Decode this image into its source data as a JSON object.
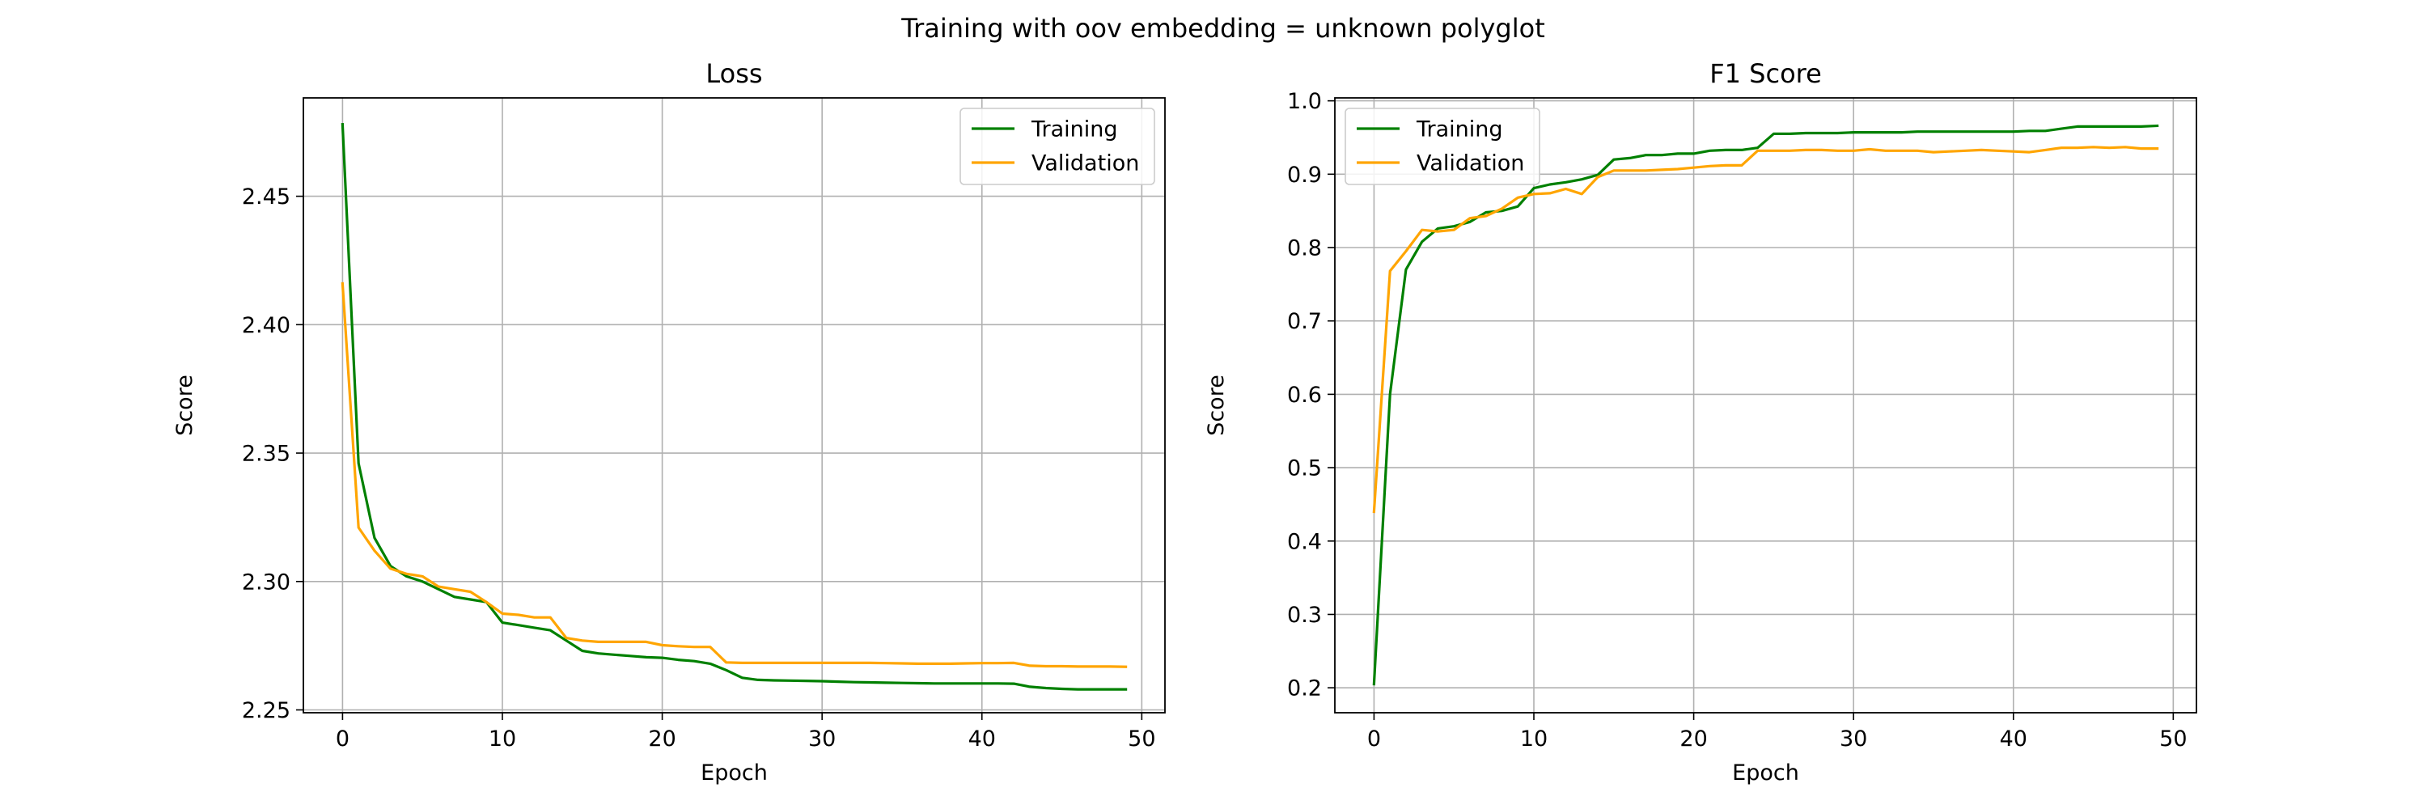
{
  "figure": {
    "suptitle": "Training with oov embedding = unknown polyglot"
  },
  "colors": {
    "training": "#008000",
    "validation": "#ffa500",
    "grid": "#b0b0b0",
    "axes": "#000000"
  },
  "chart_data": [
    {
      "type": "line",
      "title": "Loss",
      "xlabel": "Epoch",
      "ylabel": "Score",
      "xlim": [
        -2.45,
        51.45
      ],
      "ylim": [
        2.2489,
        2.4883
      ],
      "xticks": [
        0,
        10,
        20,
        30,
        40,
        50
      ],
      "yticks": [
        2.25,
        2.3,
        2.35,
        2.4,
        2.45
      ],
      "ytick_labels": [
        "2.25",
        "2.30",
        "2.35",
        "2.40",
        "2.45"
      ],
      "grid": true,
      "legend": "upper right",
      "x": [
        0,
        1,
        2,
        3,
        4,
        5,
        6,
        7,
        8,
        9,
        10,
        11,
        12,
        13,
        14,
        15,
        16,
        17,
        18,
        19,
        20,
        21,
        22,
        23,
        24,
        25,
        26,
        27,
        28,
        29,
        30,
        31,
        32,
        33,
        34,
        35,
        36,
        37,
        38,
        39,
        40,
        41,
        42,
        43,
        44,
        45,
        46,
        47,
        48,
        49
      ],
      "series": [
        {
          "name": "Training",
          "color": "#008000",
          "values": [
            2.478,
            2.346,
            2.317,
            2.306,
            2.302,
            2.3,
            2.297,
            2.294,
            2.293,
            2.292,
            2.284,
            2.283,
            2.282,
            2.281,
            2.277,
            2.273,
            2.272,
            2.2715,
            2.271,
            2.2705,
            2.2703,
            2.2695,
            2.269,
            2.268,
            2.2655,
            2.2625,
            2.2617,
            2.2615,
            2.2614,
            2.2613,
            2.2612,
            2.261,
            2.2608,
            2.2607,
            2.2606,
            2.2605,
            2.2604,
            2.2603,
            2.2603,
            2.2603,
            2.2603,
            2.2603,
            2.2602,
            2.259,
            2.2585,
            2.2582,
            2.258,
            2.258,
            2.258,
            2.258
          ]
        },
        {
          "name": "Validation",
          "color": "#ffa500",
          "values": [
            2.416,
            2.321,
            2.312,
            2.305,
            2.303,
            2.302,
            2.298,
            2.297,
            2.296,
            2.292,
            2.2875,
            2.287,
            2.286,
            2.286,
            2.278,
            2.277,
            2.2765,
            2.2765,
            2.2765,
            2.2765,
            2.2752,
            2.2748,
            2.2745,
            2.2745,
            2.2685,
            2.2683,
            2.2683,
            2.2683,
            2.2683,
            2.2683,
            2.2683,
            2.2683,
            2.2683,
            2.2683,
            2.2682,
            2.2681,
            2.268,
            2.268,
            2.268,
            2.2681,
            2.2682,
            2.2682,
            2.2683,
            2.2672,
            2.267,
            2.267,
            2.2669,
            2.2669,
            2.2669,
            2.2668
          ]
        }
      ]
    },
    {
      "type": "line",
      "title": "F1 Score",
      "xlabel": "Epoch",
      "ylabel": "Score",
      "xlim": [
        -2.45,
        51.45
      ],
      "ylim": [
        0.166,
        1.004
      ],
      "xticks": [
        0,
        10,
        20,
        30,
        40,
        50
      ],
      "yticks": [
        0.2,
        0.3,
        0.4,
        0.5,
        0.6,
        0.7,
        0.8,
        0.9,
        1.0
      ],
      "ytick_labels": [
        "0.2",
        "0.3",
        "0.4",
        "0.5",
        "0.6",
        "0.7",
        "0.8",
        "0.9",
        "1.0"
      ],
      "grid": true,
      "legend": "upper left",
      "x": [
        0,
        1,
        2,
        3,
        4,
        5,
        6,
        7,
        8,
        9,
        10,
        11,
        12,
        13,
        14,
        15,
        16,
        17,
        18,
        19,
        20,
        21,
        22,
        23,
        24,
        25,
        26,
        27,
        28,
        29,
        30,
        31,
        32,
        33,
        34,
        35,
        36,
        37,
        38,
        39,
        40,
        41,
        42,
        43,
        44,
        45,
        46,
        47,
        48,
        49
      ],
      "series": [
        {
          "name": "Training",
          "color": "#008000",
          "values": [
            0.205,
            0.6,
            0.77,
            0.808,
            0.826,
            0.829,
            0.835,
            0.848,
            0.85,
            0.856,
            0.881,
            0.886,
            0.889,
            0.893,
            0.899,
            0.92,
            0.922,
            0.926,
            0.926,
            0.928,
            0.928,
            0.932,
            0.933,
            0.933,
            0.936,
            0.955,
            0.955,
            0.956,
            0.956,
            0.956,
            0.957,
            0.957,
            0.957,
            0.957,
            0.958,
            0.958,
            0.958,
            0.958,
            0.958,
            0.958,
            0.958,
            0.959,
            0.959,
            0.962,
            0.965,
            0.965,
            0.965,
            0.965,
            0.965,
            0.966
          ]
        },
        {
          "name": "Validation",
          "color": "#ffa500",
          "values": [
            0.44,
            0.768,
            0.795,
            0.824,
            0.822,
            0.824,
            0.84,
            0.843,
            0.853,
            0.868,
            0.873,
            0.874,
            0.88,
            0.873,
            0.896,
            0.905,
            0.905,
            0.905,
            0.906,
            0.907,
            0.909,
            0.911,
            0.912,
            0.912,
            0.932,
            0.932,
            0.932,
            0.933,
            0.933,
            0.932,
            0.932,
            0.934,
            0.932,
            0.932,
            0.932,
            0.93,
            0.931,
            0.932,
            0.933,
            0.932,
            0.931,
            0.93,
            0.933,
            0.936,
            0.936,
            0.937,
            0.936,
            0.937,
            0.935,
            0.935
          ]
        }
      ]
    }
  ]
}
